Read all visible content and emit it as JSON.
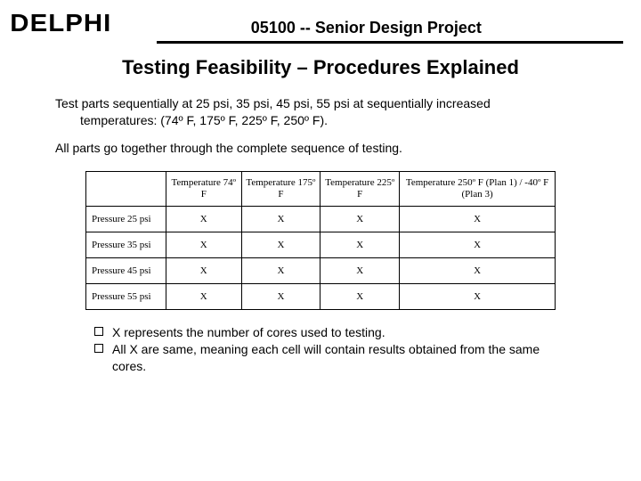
{
  "header": {
    "logo_text": "DELPHI",
    "project_title": "05100 -- Senior Design Project"
  },
  "slide_title": "Testing Feasibility – Procedures Explained",
  "body": {
    "p1_line1": "Test parts sequentially at 25 psi, 35 psi, 45 psi, 55 psi at sequentially increased",
    "p1_line2": "temperatures: (74º F, 175º F, 225º F, 250º F).",
    "p2": "All parts go together through the complete sequence of testing."
  },
  "table": {
    "columns": [
      "",
      "Temperature 74º F",
      "Temperature 175º F",
      "Temperature 225º F",
      "Temperature 250º F (Plan 1) / -40º F (Plan 3)"
    ],
    "rows": [
      [
        "Pressure 25 psi",
        "X",
        "X",
        "X",
        "X"
      ],
      [
        "Pressure 35 psi",
        "X",
        "X",
        "X",
        "X"
      ],
      [
        "Pressure 45 psi",
        "X",
        "X",
        "X",
        "X"
      ],
      [
        "Pressure 55 psi",
        "X",
        "X",
        "X",
        "X"
      ]
    ],
    "border_color": "#000000",
    "cell_font_family": "Times New Roman",
    "cell_fontsize": 11
  },
  "notes": {
    "n1": "X represents the number of cores used to testing.",
    "n2": "All X are same, meaning each cell will contain results obtained from the same cores."
  },
  "colors": {
    "background": "#ffffff",
    "text": "#000000",
    "rule": "#000000"
  }
}
